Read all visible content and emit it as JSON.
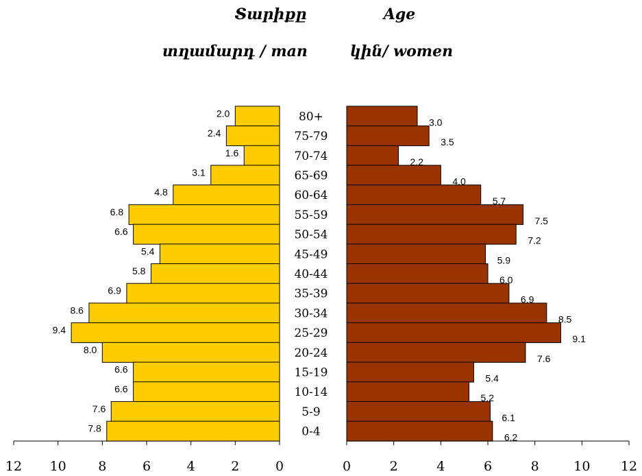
{
  "chart_data": {
    "type": "bar",
    "header": {
      "age_arm": "Տարիքը",
      "age_en": "Age",
      "men_label": "տղամարդ / man",
      "women_label": "կին/ women"
    },
    "categories": [
      "80+",
      "75-79",
      "70-74",
      "65-69",
      "60-64",
      "55-59",
      "50-54",
      "45-49",
      "40-44",
      "35-39",
      "30-34",
      "25-29",
      "20-24",
      "15-19",
      "10-14",
      "5-9",
      "0-4"
    ],
    "series": [
      {
        "name": "տղամարդ / man",
        "color": "#FFCC00",
        "values": [
          2.0,
          2.4,
          1.6,
          3.1,
          4.8,
          6.8,
          6.6,
          5.4,
          5.8,
          6.9,
          8.6,
          9.4,
          8.0,
          6.6,
          6.6,
          7.6,
          7.8
        ]
      },
      {
        "name": "կին/ women",
        "color": "#993300",
        "values": [
          3.0,
          3.5,
          2.2,
          4.0,
          5.7,
          7.5,
          7.2,
          5.9,
          6.0,
          6.9,
          8.5,
          9.1,
          7.6,
          5.4,
          5.2,
          6.1,
          6.2
        ]
      }
    ],
    "xticks_left": [
      "12",
      "10",
      "8",
      "6",
      "4",
      "2",
      "0"
    ],
    "xticks_right": [
      "0",
      "2",
      "4",
      "6",
      "8",
      "10",
      "12"
    ],
    "xlim": [
      0,
      12
    ],
    "grid": false
  }
}
